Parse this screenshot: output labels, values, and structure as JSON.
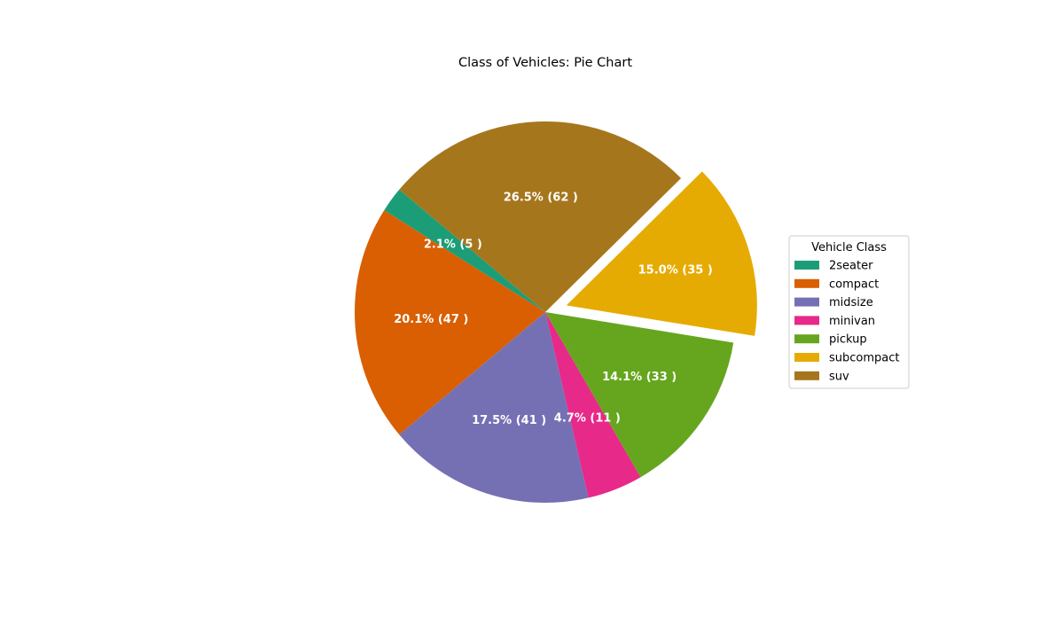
{
  "chart_data": {
    "type": "pie",
    "title": "Class of Vehicles: Pie Chart",
    "slices": [
      {
        "label": "2seater",
        "value": 5,
        "pct_label": "2.1% (5 )",
        "color": "#1b9e77",
        "explode": false
      },
      {
        "label": "compact",
        "value": 47,
        "pct_label": "20.1% (47 )",
        "color": "#d95f02",
        "explode": false
      },
      {
        "label": "midsize",
        "value": 41,
        "pct_label": "17.5% (41 )",
        "color": "#7570b3",
        "explode": false
      },
      {
        "label": "minivan",
        "value": 11,
        "pct_label": "4.7% (11 )",
        "color": "#e7298a",
        "explode": false
      },
      {
        "label": "pickup",
        "value": 33,
        "pct_label": "14.1% (33 )",
        "color": "#66a61e",
        "explode": false
      },
      {
        "label": "subcompact",
        "value": 35,
        "pct_label": "15.0% (35 )",
        "color": "#e6ab02",
        "explode": true
      },
      {
        "label": "suv",
        "value": 62,
        "pct_label": "26.5% (62 )",
        "color": "#a6761d",
        "explode": false
      }
    ],
    "start_angle_deg": 140,
    "legend": {
      "title": "Vehicle Class",
      "placement": "right"
    }
  }
}
